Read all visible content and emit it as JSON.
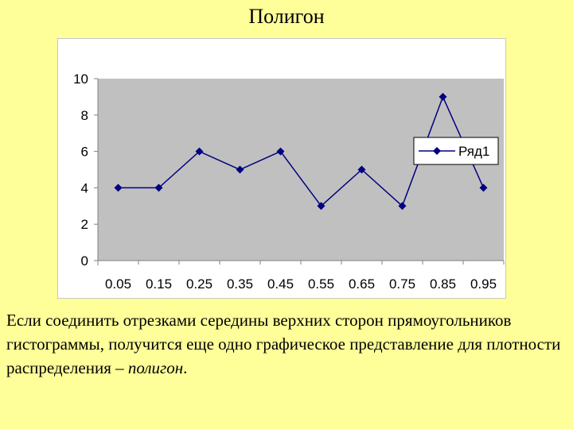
{
  "slide": {
    "title": "Полигон",
    "caption_main": "Если соединить отрезками середины верхних сторон прямоугольников гистограммы, получится еще одно графическое представление для плотности распределения – ",
    "caption_term": "полигон",
    "caption_end": "."
  },
  "colors": {
    "background": "#ffff99",
    "plot_area": "#c0c0c0",
    "series": "#000080"
  },
  "chart_data": {
    "type": "line",
    "title": "",
    "xlabel": "",
    "ylabel": "",
    "categories": [
      "0.05",
      "0.15",
      "0.25",
      "0.35",
      "0.45",
      "0.55",
      "0.65",
      "0.75",
      "0.85",
      "0.95"
    ],
    "series": [
      {
        "name": "Ряд1",
        "values": [
          4,
          4,
          6,
          5,
          6,
          3,
          5,
          3,
          9,
          4
        ]
      }
    ],
    "ylim": [
      0,
      10
    ],
    "yticks": [
      "0",
      "2",
      "4",
      "6",
      "8",
      "10"
    ],
    "grid": false,
    "legend": "right",
    "marker": "diamond"
  }
}
